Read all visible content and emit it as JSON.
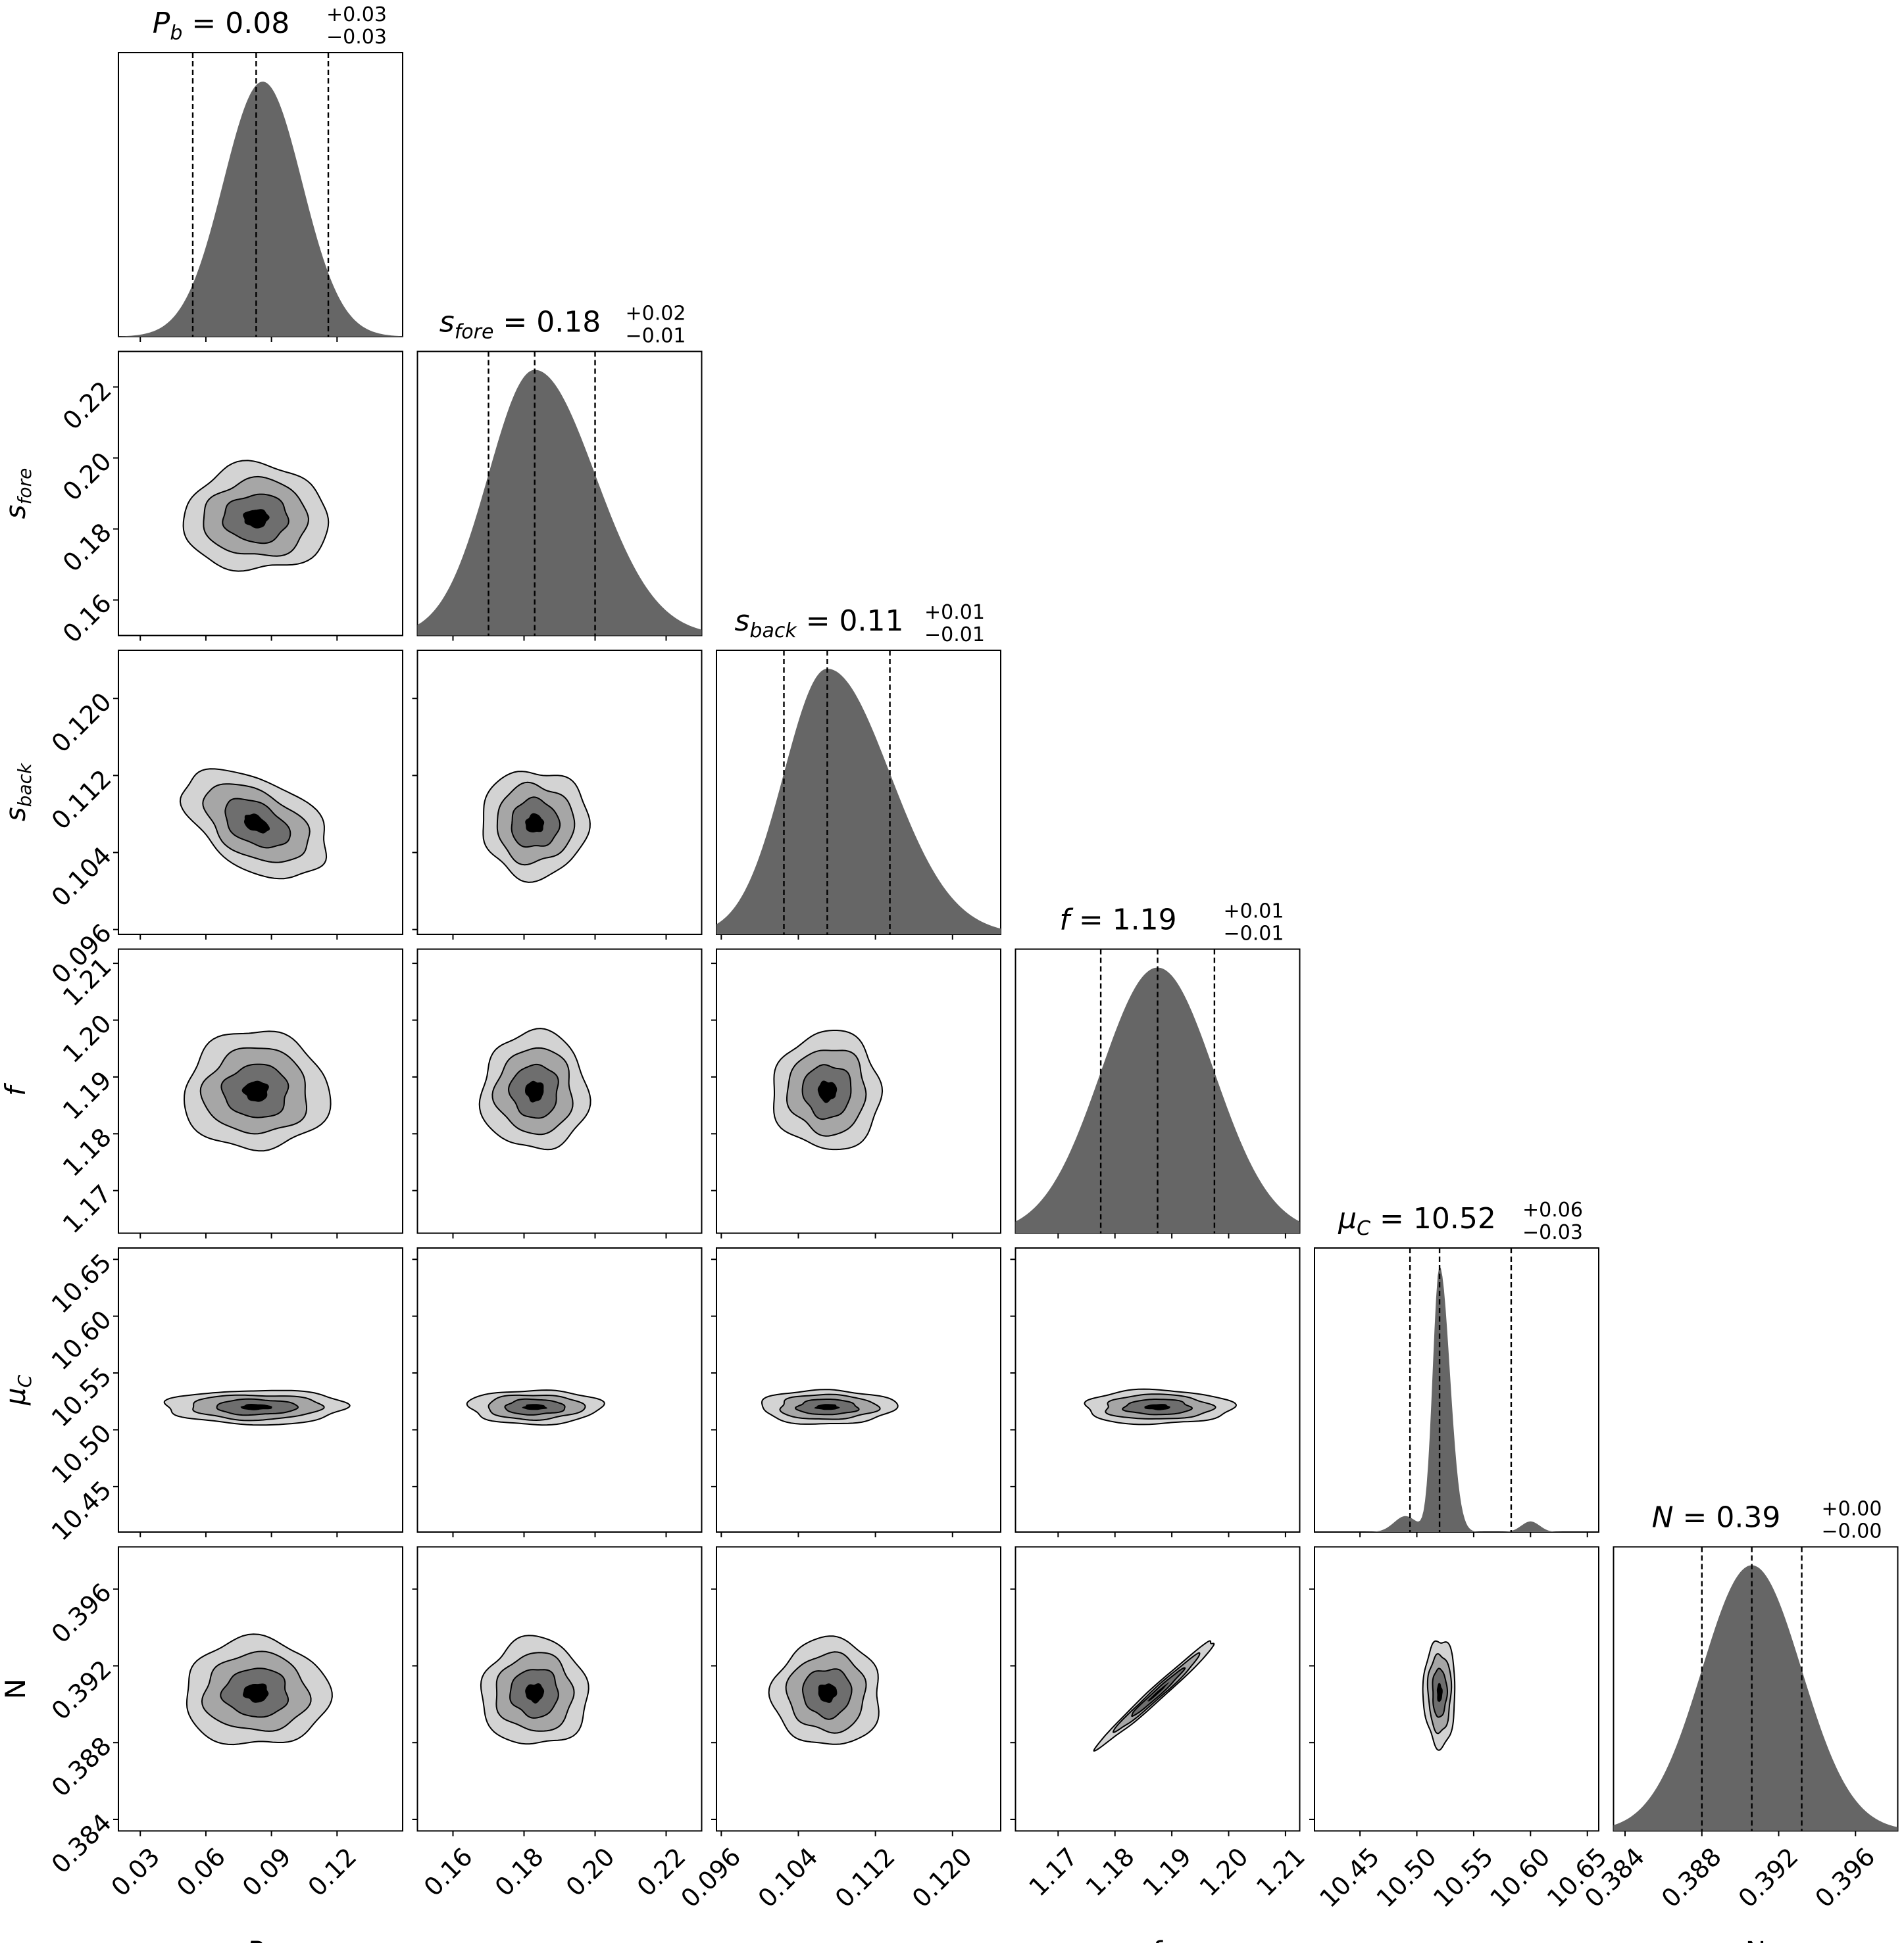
{
  "chart_data": {
    "type": "corner",
    "description_free": true,
    "parameters": [
      {
        "key": "Pb",
        "label_base": "P",
        "label_sub": "b",
        "median": 0.08,
        "plus": 0.03,
        "minus": 0.03,
        "title": {
          "base": "P",
          "sub": "b",
          "value": "= 0.08",
          "sup": "+0.03",
          "inf": "−0.03"
        },
        "range": [
          0.02,
          0.15
        ],
        "ticks": [
          0.03,
          0.06,
          0.09,
          0.12
        ],
        "tick_labels": [
          "0.03",
          "0.06",
          "0.09",
          "0.12"
        ],
        "quantiles": [
          0.054,
          0.083,
          0.116
        ],
        "sd": 0.0165
      },
      {
        "key": "sfore",
        "label_base": "s",
        "label_sub": "fore",
        "median": 0.18,
        "plus": 0.02,
        "minus": 0.01,
        "title": {
          "base": "s",
          "sub": "fore",
          "value": "= 0.18",
          "sup": "+0.02",
          "inf": "−0.01"
        },
        "range": [
          0.15,
          0.23
        ],
        "ticks": [
          0.16,
          0.18,
          0.2,
          0.22
        ],
        "tick_labels": [
          "0.16",
          "0.18",
          "0.20",
          "0.22"
        ],
        "quantiles": [
          0.17,
          0.183,
          0.2
        ],
        "sd": 0.0075
      },
      {
        "key": "sback",
        "label_base": "s",
        "label_sub": "back",
        "median": 0.11,
        "plus": 0.01,
        "minus": 0.01,
        "title": {
          "base": "s",
          "sub": "back",
          "value": "= 0.11",
          "sup": "+0.01",
          "inf": "−0.01"
        },
        "range": [
          0.0955,
          0.125
        ],
        "ticks": [
          0.096,
          0.104,
          0.112,
          0.12
        ],
        "tick_labels": [
          "0.096",
          "0.104",
          "0.112",
          "0.120"
        ],
        "quantiles": [
          0.1025,
          0.107,
          0.1135
        ],
        "sd": 0.0028
      },
      {
        "key": "f",
        "label_base": "f",
        "label_sub": "",
        "median": 1.19,
        "plus": 0.01,
        "minus": 0.01,
        "title": {
          "base": "f",
          "sub": "",
          "value": "= 1.19",
          "sup": "+0.01",
          "inf": "−0.01"
        },
        "range": [
          1.1625,
          1.2125
        ],
        "ticks": [
          1.17,
          1.18,
          1.19,
          1.2,
          1.21
        ],
        "tick_labels": [
          "1.17",
          "1.18",
          "1.19",
          "1.20",
          "1.21"
        ],
        "quantiles": [
          1.1775,
          1.1875,
          1.1975
        ],
        "sd": 0.0052
      },
      {
        "key": "muC",
        "label_base": "μ",
        "label_sub": "C",
        "median": 10.52,
        "plus": 0.06,
        "minus": 0.03,
        "title": {
          "base": "μ",
          "sub": "C",
          "value": "= 10.52",
          "sup": "+0.06",
          "inf": "−0.03"
        },
        "range": [
          10.41,
          10.66
        ],
        "ticks": [
          10.45,
          10.5,
          10.55,
          10.6,
          10.65
        ],
        "tick_labels": [
          "10.45",
          "10.50",
          "10.55",
          "10.60",
          "10.65"
        ],
        "quantiles": [
          10.494,
          10.52,
          10.583
        ],
        "sd": 0.006
      },
      {
        "key": "N",
        "label_base": "N",
        "label_sub": "",
        "median": 0.39,
        "plus": 0.0,
        "minus": 0.0,
        "title": {
          "base": "N",
          "sub": "",
          "value": "= 0.39",
          "sup": "+0.00",
          "inf": "−0.00"
        },
        "range": [
          0.3834,
          0.3982
        ],
        "ticks": [
          0.384,
          0.388,
          0.392,
          0.396
        ],
        "tick_labels": [
          "0.384",
          "0.388",
          "0.392",
          "0.396"
        ],
        "quantiles": [
          0.388,
          0.3906,
          0.3932
        ],
        "sd": 0.0014
      }
    ],
    "contour_levels": [
      "outer",
      "middle",
      "inner",
      "core"
    ],
    "colors": {
      "histogram_fill": "#666666",
      "contour_1": "#d3d3d3",
      "contour_2": "#a6a6a6",
      "contour_3": "#6e6e6e",
      "contour_core": "#000000",
      "quantile_line": "#000000",
      "frame": "#000000"
    }
  }
}
